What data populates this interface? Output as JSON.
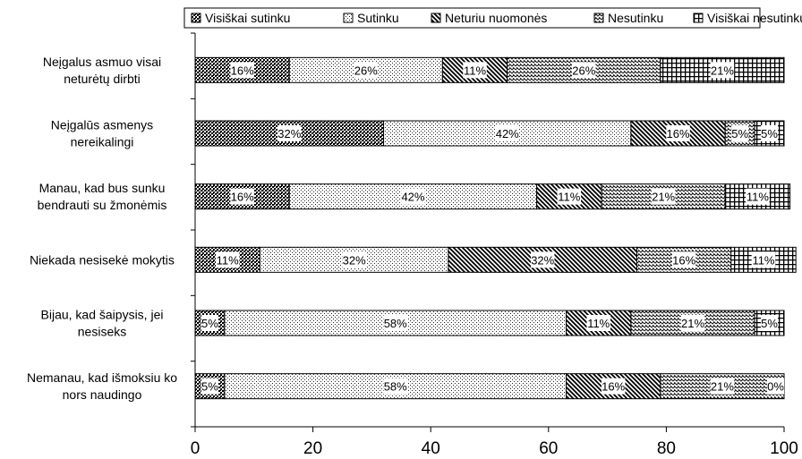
{
  "chart_data": {
    "type": "bar",
    "orientation": "horizontal",
    "stacked": true,
    "categories": [
      [
        "Neįgalus asmuo visai",
        "neturėtų dirbti"
      ],
      [
        "Neįgalūs asmenys",
        "nereikalingi"
      ],
      [
        "Manau, kad bus sunku",
        "bendrauti su žmonėmis"
      ],
      [
        "Niekada nesisekė mokytis"
      ],
      [
        "Bijau, kad šaipysis, jei",
        "nesiseks"
      ],
      [
        "Nemanau, kad išmoksiu ko",
        "nors naudingo"
      ]
    ],
    "series": [
      {
        "name": "Visiškai sutinku",
        "pattern": "dense-dots",
        "values": [
          16,
          32,
          16,
          11,
          5,
          5
        ],
        "labels": [
          "16%",
          "32%",
          "16%",
          "11%",
          "5%",
          "5%"
        ]
      },
      {
        "name": "Sutinku",
        "pattern": "light-dots",
        "values": [
          26,
          42,
          42,
          32,
          58,
          58
        ],
        "labels": [
          "26%",
          "42%",
          "42%",
          "32%",
          "58%",
          "58%"
        ]
      },
      {
        "name": "Neturiu nuomonės",
        "pattern": "diagonal-lines",
        "values": [
          11,
          16,
          11,
          32,
          11,
          16
        ],
        "labels": [
          "11%",
          "16%",
          "11%",
          "32%",
          "11%",
          "16%"
        ]
      },
      {
        "name": "Nesutinku",
        "pattern": "zigzag",
        "values": [
          26,
          5,
          21,
          16,
          21,
          21
        ],
        "labels": [
          "26%",
          "5%",
          "21%",
          "16%",
          "21%",
          "21%"
        ]
      },
      {
        "name": "Visiškai nesutinku",
        "pattern": "grid",
        "values": [
          21,
          5,
          11,
          11,
          5,
          0
        ],
        "labels": [
          "21%",
          "5%",
          "11%",
          "11%",
          "5%",
          "0%"
        ]
      }
    ],
    "xlim": [
      0,
      100
    ],
    "xticks": [
      "0",
      "20",
      "40",
      "60",
      "80",
      "100"
    ],
    "legend": "top",
    "grid": false
  }
}
